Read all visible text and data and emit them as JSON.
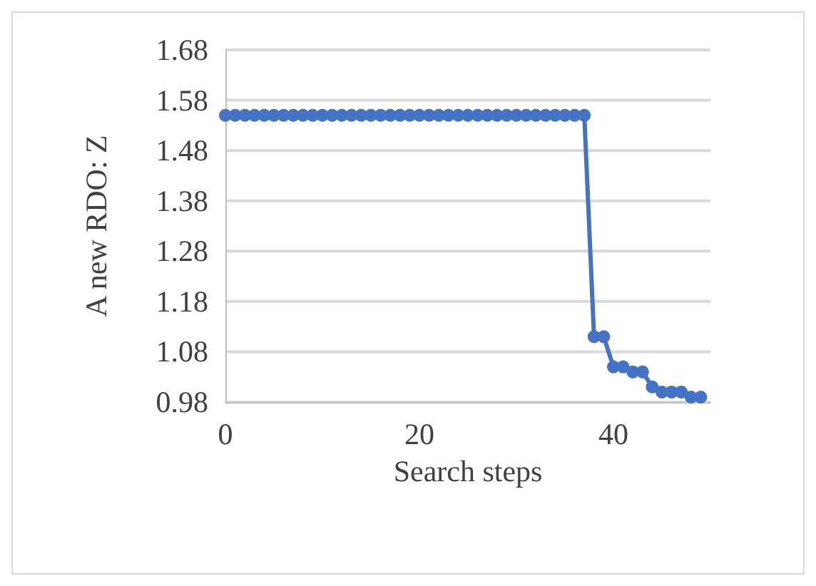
{
  "chart_data": {
    "type": "line",
    "xlabel": "Search steps",
    "ylabel": "A new RDO: Z",
    "x": [
      0,
      1,
      2,
      3,
      4,
      5,
      6,
      7,
      8,
      9,
      10,
      11,
      12,
      13,
      14,
      15,
      16,
      17,
      18,
      19,
      20,
      21,
      22,
      23,
      24,
      25,
      26,
      27,
      28,
      29,
      30,
      31,
      32,
      33,
      34,
      35,
      36,
      37,
      38,
      39,
      40,
      41,
      42,
      43,
      44,
      45,
      46,
      47,
      48,
      49
    ],
    "series": [
      {
        "color": "#4472c4",
        "values": [
          1.55,
          1.55,
          1.55,
          1.55,
          1.55,
          1.55,
          1.55,
          1.55,
          1.55,
          1.55,
          1.55,
          1.55,
          1.55,
          1.55,
          1.55,
          1.55,
          1.55,
          1.55,
          1.55,
          1.55,
          1.55,
          1.55,
          1.55,
          1.55,
          1.55,
          1.55,
          1.55,
          1.55,
          1.55,
          1.55,
          1.55,
          1.55,
          1.55,
          1.55,
          1.55,
          1.55,
          1.55,
          1.55,
          1.11,
          1.11,
          1.05,
          1.05,
          1.04,
          1.04,
          1.01,
          1.0,
          1.0,
          1.0,
          0.99,
          0.99
        ]
      }
    ],
    "xlim": [
      0,
      50
    ],
    "xticks": [
      0,
      20,
      40
    ],
    "ylim": [
      0.98,
      1.68
    ],
    "yticks": [
      0.98,
      1.08,
      1.18,
      1.28,
      1.38,
      1.48,
      1.58,
      1.68
    ],
    "grid": "y",
    "marker": "circle",
    "line_style": "solid"
  }
}
